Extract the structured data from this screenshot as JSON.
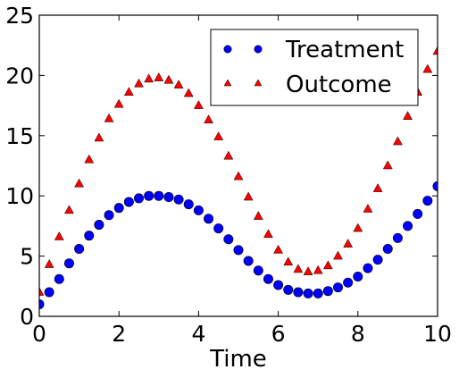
{
  "chart_data": {
    "type": "scatter",
    "title": "",
    "xlabel": "Time",
    "ylabel": "",
    "xlim": [
      0,
      10
    ],
    "ylim": [
      0,
      25
    ],
    "xticks": [
      "0",
      "2",
      "4",
      "6",
      "8",
      "10"
    ],
    "yticks": [
      "0",
      "5",
      "10",
      "15",
      "20",
      "25"
    ],
    "grid": false,
    "legend_position": "top-right",
    "series": [
      {
        "name": "Treatment",
        "marker": "circle",
        "color": "#0000ff",
        "x": [
          0.0,
          0.25,
          0.5,
          0.75,
          1.0,
          1.25,
          1.5,
          1.75,
          2.0,
          2.25,
          2.5,
          2.75,
          3.0,
          3.25,
          3.5,
          3.75,
          4.0,
          4.25,
          4.5,
          4.75,
          5.0,
          5.25,
          5.5,
          5.75,
          6.0,
          6.25,
          6.5,
          6.75,
          7.0,
          7.25,
          7.5,
          7.75,
          8.0,
          8.25,
          8.5,
          8.75,
          9.0,
          9.25,
          9.5,
          9.75,
          10.0
        ],
        "y": [
          1.0,
          2.0,
          3.1,
          4.4,
          5.6,
          6.7,
          7.6,
          8.4,
          9.0,
          9.5,
          9.8,
          10.0,
          10.0,
          9.9,
          9.7,
          9.3,
          8.8,
          8.1,
          7.3,
          6.4,
          5.5,
          4.6,
          3.8,
          3.1,
          2.6,
          2.2,
          2.0,
          1.9,
          1.9,
          2.1,
          2.4,
          2.8,
          3.3,
          4.0,
          4.7,
          5.6,
          6.5,
          7.5,
          8.5,
          9.6,
          10.8
        ]
      },
      {
        "name": "Outcome",
        "marker": "triangle",
        "color": "#ff0000",
        "x": [
          0.0,
          0.25,
          0.5,
          0.75,
          1.0,
          1.25,
          1.5,
          1.75,
          2.0,
          2.25,
          2.5,
          2.75,
          3.0,
          3.25,
          3.5,
          3.75,
          4.0,
          4.25,
          4.5,
          4.75,
          5.0,
          5.25,
          5.5,
          5.75,
          6.0,
          6.25,
          6.5,
          6.75,
          7.0,
          7.25,
          7.5,
          7.75,
          8.0,
          8.25,
          8.5,
          8.75,
          9.0,
          9.25,
          9.5,
          9.75,
          10.0
        ],
        "y": [
          2.0,
          4.3,
          6.6,
          8.8,
          11.0,
          13.0,
          14.8,
          16.4,
          17.6,
          18.6,
          19.3,
          19.7,
          19.8,
          19.6,
          19.2,
          18.5,
          17.5,
          16.3,
          14.9,
          13.3,
          11.6,
          9.9,
          8.3,
          6.8,
          5.5,
          4.5,
          3.9,
          3.7,
          3.8,
          4.2,
          5.0,
          6.0,
          7.3,
          8.9,
          10.6,
          12.5,
          14.5,
          16.6,
          18.6,
          20.5,
          22.0
        ]
      }
    ]
  }
}
